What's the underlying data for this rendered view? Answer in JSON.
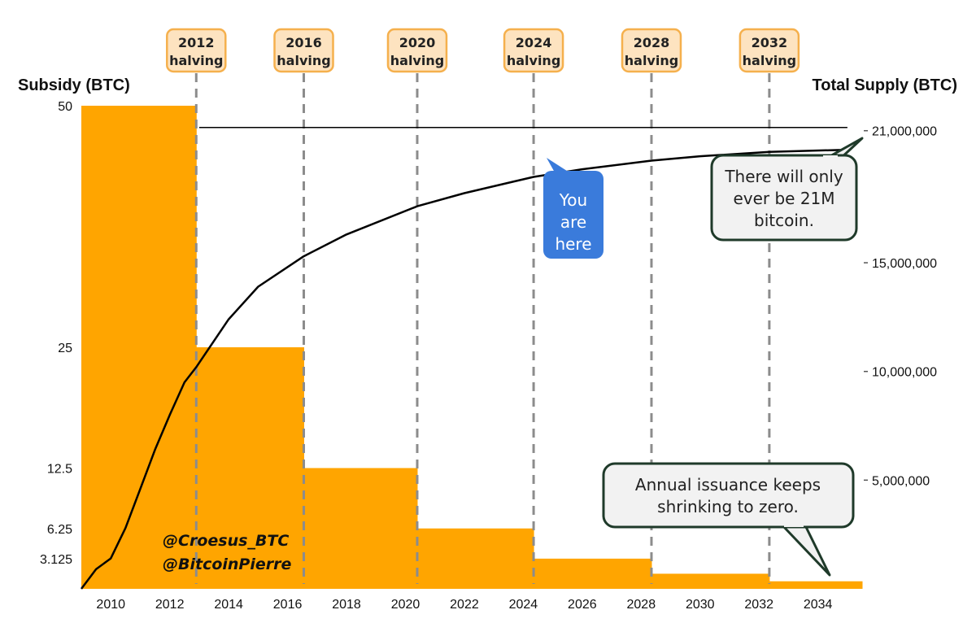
{
  "chart_data": {
    "type": "bar+line",
    "left_axis": {
      "title": "Subsidy (BTC)",
      "ticks": [
        "50",
        "25",
        "12.5",
        "6.25",
        "3.125"
      ],
      "tick_values": [
        50,
        25,
        12.5,
        6.25,
        3.125
      ],
      "range": [
        0,
        50
      ]
    },
    "right_axis": {
      "title": "Total Supply (BTC)",
      "ticks": [
        "21,000,000",
        "15,000,000",
        "10,000,000",
        "5,000,000"
      ],
      "tick_values": [
        21000000,
        15000000,
        10000000,
        5000000
      ],
      "range": [
        0,
        21700000
      ]
    },
    "x_axis": {
      "ticks": [
        "2010",
        "2012",
        "2014",
        "2016",
        "2018",
        "2020",
        "2022",
        "2024",
        "2026",
        "2028",
        "2030",
        "2032",
        "2034"
      ],
      "tick_values": [
        2010,
        2012,
        2014,
        2016,
        2018,
        2020,
        2022,
        2024,
        2026,
        2028,
        2030,
        2032,
        2034
      ],
      "range": [
        2009,
        2035.5
      ]
    },
    "subsidy_steps": [
      {
        "start": 2009.0,
        "end": 2012.9,
        "value": 50
      },
      {
        "start": 2012.9,
        "end": 2016.55,
        "value": 25
      },
      {
        "start": 2016.55,
        "end": 2020.4,
        "value": 12.5
      },
      {
        "start": 2020.4,
        "end": 2024.35,
        "value": 6.25
      },
      {
        "start": 2024.35,
        "end": 2028.35,
        "value": 3.125
      },
      {
        "start": 2028.35,
        "end": 2032.35,
        "value": 1.5625
      },
      {
        "start": 2032.35,
        "end": 2035.5,
        "value": 0.78125
      }
    ],
    "supply_series": {
      "name": "Total Supply",
      "x": [
        2009.0,
        2009.5,
        2010.0,
        2010.5,
        2011.0,
        2011.5,
        2012.0,
        2012.5,
        2012.9,
        2014.0,
        2015.0,
        2016.55,
        2018.0,
        2020.4,
        2022.0,
        2024.35,
        2026.0,
        2028.35,
        2030.0,
        2032.35,
        2035.0
      ],
      "y": [
        0,
        900000,
        1400000,
        2800000,
        4600000,
        6400000,
        8000000,
        9500000,
        10200000,
        12400000,
        13900000,
        15300000,
        16300000,
        17600000,
        18200000,
        18950000,
        19300000,
        19700000,
        19900000,
        20100000,
        20200000
      ]
    },
    "cap_line": {
      "value": 21000000,
      "start": 2013.0,
      "end": 2035.0
    },
    "halvings": [
      {
        "year": 2012.9,
        "label_top": "2012",
        "label_bottom": "halving"
      },
      {
        "year": 2016.55,
        "label_top": "2016",
        "label_bottom": "halving"
      },
      {
        "year": 2020.4,
        "label_top": "2020",
        "label_bottom": "halving"
      },
      {
        "year": 2024.35,
        "label_top": "2024",
        "label_bottom": "halving"
      },
      {
        "year": 2028.35,
        "label_top": "2028",
        "label_bottom": "halving"
      },
      {
        "year": 2032.35,
        "label_top": "2032",
        "label_bottom": "halving"
      }
    ],
    "annotations": {
      "you_are_here": [
        "You",
        "are",
        "here"
      ],
      "supply_cap": [
        "There will only",
        "ever be 21M",
        "bitcoin."
      ],
      "issuance": [
        "Annual issuance keeps",
        "shrinking to zero."
      ],
      "handles": [
        "@Croesus_BTC",
        "@BitcoinPierre"
      ]
    },
    "colors": {
      "bars": "#FFA500",
      "halving_box_fill": "#FDE3C0",
      "halving_box_stroke": "#F5B04D",
      "line": "#000000",
      "dash": "#8c8c8c",
      "here_bubble": "#3A7BDB",
      "callout_fill": "#F2F2F2",
      "callout_stroke": "#1F3A2A"
    }
  }
}
